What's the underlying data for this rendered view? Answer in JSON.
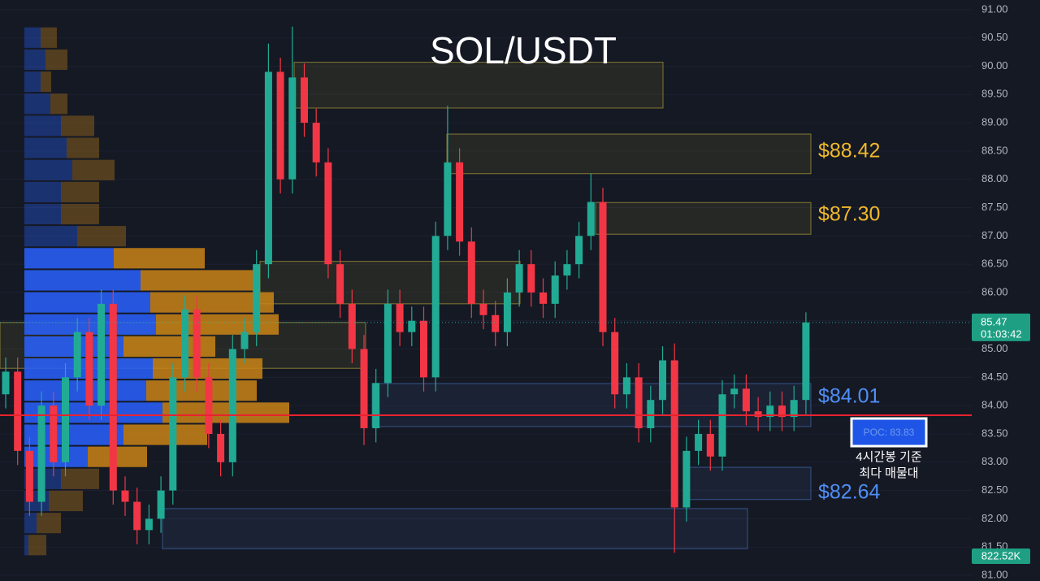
{
  "chart_data": {
    "type": "candlestick",
    "title": "SOL/USDT",
    "ylim": [
      80.9,
      91.17
    ],
    "yticks": [
      {
        "value": 91,
        "label": "91.00"
      },
      {
        "value": 90.5,
        "label": "90.50"
      },
      {
        "value": 90,
        "label": "90.00"
      },
      {
        "value": 89.5,
        "label": "89.50"
      },
      {
        "value": 89,
        "label": "89.00"
      },
      {
        "value": 88.5,
        "label": "88.50"
      },
      {
        "value": 88,
        "label": "88.00"
      },
      {
        "value": 87.5,
        "label": "87.50"
      },
      {
        "value": 87,
        "label": "87.00"
      },
      {
        "value": 86.5,
        "label": "86.50"
      },
      {
        "value": 86,
        "label": "86.00"
      },
      {
        "value": 85.5,
        "label": "85.50"
      },
      {
        "value": 85,
        "label": "85.00"
      },
      {
        "value": 84.5,
        "label": "84.50"
      },
      {
        "value": 84,
        "label": "84.00"
      },
      {
        "value": 83.5,
        "label": "83.50"
      },
      {
        "value": 83,
        "label": "83.00"
      },
      {
        "value": 82.5,
        "label": "82.50"
      },
      {
        "value": 82,
        "label": "82.00"
      },
      {
        "value": 81.5,
        "label": "81.50"
      },
      {
        "value": 81,
        "label": "81.00"
      }
    ],
    "up_color": "#22ab94",
    "down_color": "#f23645",
    "open": [
      84.2,
      84.6,
      83.2,
      82.3,
      84.0,
      83.0,
      84.5,
      85.3,
      84.0,
      85.8,
      82.5,
      82.3,
      81.8,
      82.0,
      82.5,
      84.5,
      85.7,
      84.5,
      83.5,
      83.0,
      85.0,
      85.3,
      86.5,
      89.9,
      88.0,
      89.8,
      89.0,
      88.3,
      86.5,
      85.8,
      85.0,
      83.6,
      84.4,
      85.8,
      85.3,
      85.5,
      84.5,
      87.0,
      88.3,
      86.9,
      85.8,
      85.6,
      85.3,
      86.0,
      86.5,
      86.0,
      85.8,
      86.3,
      86.5,
      87.0,
      87.6,
      85.3,
      84.2,
      84.5,
      83.6,
      84.1,
      84.8,
      82.2,
      83.2,
      83.5,
      83.1,
      84.2,
      84.3,
      83.9,
      83.8,
      84.0,
      83.8,
      84.1
    ],
    "high": [
      84.85,
      84.85,
      83.45,
      84.25,
      84.25,
      84.75,
      85.55,
      85.55,
      86.05,
      86.05,
      82.75,
      82.55,
      82.25,
      82.75,
      84.75,
      85.95,
      85.95,
      84.75,
      83.75,
      85.25,
      85.55,
      86.75,
      90.4,
      90.15,
      90.7,
      90.05,
      89.25,
      88.55,
      86.75,
      86.05,
      85.25,
      84.65,
      86.05,
      86.05,
      85.75,
      85.75,
      87.25,
      89.3,
      88.55,
      87.15,
      86.05,
      85.85,
      86.25,
      86.75,
      86.75,
      86.25,
      86.55,
      86.75,
      87.25,
      88.1,
      87.85,
      85.55,
      84.75,
      84.75,
      84.35,
      85.05,
      85.1,
      83.45,
      83.75,
      83.75,
      84.45,
      84.55,
      84.55,
      84.15,
      84.25,
      84.25,
      84.35,
      85.65
    ],
    "low": [
      83.95,
      82.95,
      82.05,
      82.05,
      82.75,
      82.75,
      84.25,
      83.75,
      83.75,
      82.25,
      82.05,
      81.55,
      81.55,
      81.75,
      82.25,
      84.25,
      84.25,
      83.25,
      82.75,
      82.75,
      84.75,
      85.05,
      86.25,
      87.75,
      87.75,
      88.75,
      88.05,
      86.25,
      85.55,
      84.75,
      83.3,
      83.35,
      84.15,
      85.05,
      85.05,
      84.25,
      84.25,
      86.75,
      86.65,
      85.55,
      85.35,
      85.05,
      85.05,
      85.75,
      85.75,
      85.55,
      85.55,
      86.05,
      86.25,
      86.75,
      85.05,
      83.95,
      83.95,
      83.35,
      83.35,
      83.85,
      81.4,
      81.95,
      82.95,
      82.85,
      82.85,
      83.95,
      83.65,
      83.55,
      83.55,
      83.55,
      83.55,
      83.85
    ],
    "close": [
      84.6,
      83.2,
      82.3,
      84.0,
      83.0,
      84.5,
      85.3,
      84.0,
      85.8,
      82.5,
      82.3,
      81.8,
      82.0,
      82.5,
      84.5,
      85.7,
      84.5,
      83.5,
      83.0,
      85.0,
      85.3,
      86.5,
      89.9,
      88.0,
      89.8,
      89.0,
      88.3,
      86.5,
      85.8,
      85.0,
      83.6,
      84.4,
      85.8,
      85.3,
      85.5,
      84.5,
      87.0,
      88.3,
      86.9,
      85.8,
      85.6,
      85.3,
      86.0,
      86.5,
      86.0,
      85.8,
      86.3,
      86.5,
      87.0,
      87.6,
      85.3,
      84.2,
      84.5,
      83.6,
      84.1,
      84.8,
      82.2,
      83.2,
      83.5,
      83.1,
      84.2,
      84.3,
      83.9,
      83.8,
      84.0,
      83.8,
      84.1,
      85.47
    ],
    "volume_profile": {
      "bins": [
        90.7,
        90.31,
        89.92,
        89.53,
        89.14,
        88.75,
        88.36,
        87.97,
        87.58,
        87.19,
        86.8,
        86.41,
        86.02,
        85.63,
        85.24,
        84.85,
        84.46,
        84.07,
        83.68,
        83.29,
        82.9,
        82.51,
        82.12,
        81.73,
        81.34
      ],
      "buy": [
        20,
        26,
        20,
        32,
        45,
        52,
        59,
        45,
        45,
        65,
        110,
        143,
        155,
        162,
        122,
        158,
        150,
        170,
        122,
        78,
        45,
        30,
        15,
        5
      ],
      "sell": [
        20,
        27,
        13,
        21,
        41,
        40,
        52,
        47,
        47,
        60,
        112,
        142,
        152,
        151,
        113,
        135,
        136,
        156,
        103,
        73,
        47,
        42,
        30,
        22
      ],
      "buy_color": "#2962ff",
      "sell_color": "#c98416"
    },
    "zones": [
      {
        "low": 89.26,
        "high": 90.07,
        "color": "#c8b43c"
      },
      {
        "low": 88.1,
        "high": 88.8,
        "color": "#c8b43c"
      },
      {
        "low": 87.03,
        "high": 87.59,
        "color": "#c8b43c"
      },
      {
        "low": 85.8,
        "high": 86.55,
        "color": "#c8b43c"
      },
      {
        "low": 84.66,
        "high": 85.47,
        "color": "#c8b43c"
      },
      {
        "low": 83.63,
        "high": 84.39,
        "color": "#4a78c8"
      },
      {
        "low": 82.34,
        "high": 82.91,
        "color": "#4a78c8"
      },
      {
        "low": 81.47,
        "high": 82.18,
        "color": "#4a78c8"
      }
    ],
    "poc": {
      "value": 83.83,
      "label": "POC: 83.83",
      "note": [
        "4시간봉 기준",
        "최다 매물대"
      ]
    },
    "level_labels": [
      "$88.42",
      "$87.30",
      "$84.01",
      "$82.64"
    ],
    "last_price": {
      "value": 85.47,
      "label": "85.47",
      "countdown": "01:03:42"
    },
    "volume_label": "822.52K"
  }
}
